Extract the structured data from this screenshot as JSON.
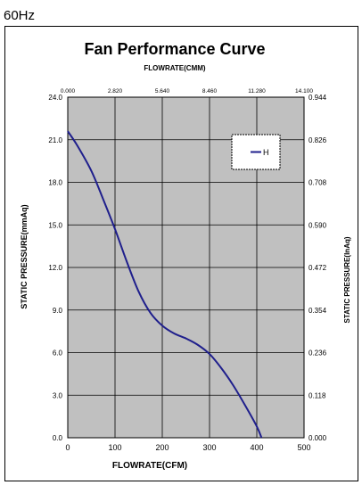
{
  "page": {
    "frequency_label": "60Hz"
  },
  "chart_data": {
    "type": "line",
    "title": "Fan Performance Curve",
    "xlabel": "FLOWRATE(CFM)",
    "x2label": "FLOWRATE(CMM)",
    "ylabel": "STATIC PRESSURE(mmAq)",
    "y2label": "STATIC PRESSURE(InAq)",
    "xlim": [
      0,
      500
    ],
    "ylim": [
      0,
      24
    ],
    "x_ticks": [
      "0",
      "100",
      "200",
      "300",
      "400",
      "500"
    ],
    "x2_ticks": [
      "0.000",
      "2.820",
      "5.640",
      "8.460",
      "11.280",
      "14.100"
    ],
    "y_ticks": [
      "0.0",
      "3.0",
      "6.0",
      "9.0",
      "12.0",
      "15.0",
      "18.0",
      "21.0",
      "24.0"
    ],
    "y2_ticks": [
      "0.000",
      "0.118",
      "0.236",
      "0.354",
      "0.472",
      "0.590",
      "0.708",
      "0.826",
      "0.944"
    ],
    "grid": true,
    "legend_position": "top-right",
    "colors": {
      "plot_bg": "#c0c0c0",
      "line": "#1f1f8c"
    },
    "series": [
      {
        "name": "H",
        "points": [
          [
            0,
            21.6
          ],
          [
            20,
            20.6
          ],
          [
            50,
            18.8
          ],
          [
            75,
            16.8
          ],
          [
            100,
            14.7
          ],
          [
            125,
            12.4
          ],
          [
            150,
            10.3
          ],
          [
            175,
            8.8
          ],
          [
            200,
            7.9
          ],
          [
            225,
            7.35
          ],
          [
            250,
            7.0
          ],
          [
            275,
            6.55
          ],
          [
            300,
            5.9
          ],
          [
            325,
            4.9
          ],
          [
            350,
            3.7
          ],
          [
            375,
            2.3
          ],
          [
            400,
            0.8
          ],
          [
            410,
            0.0
          ]
        ]
      }
    ]
  }
}
